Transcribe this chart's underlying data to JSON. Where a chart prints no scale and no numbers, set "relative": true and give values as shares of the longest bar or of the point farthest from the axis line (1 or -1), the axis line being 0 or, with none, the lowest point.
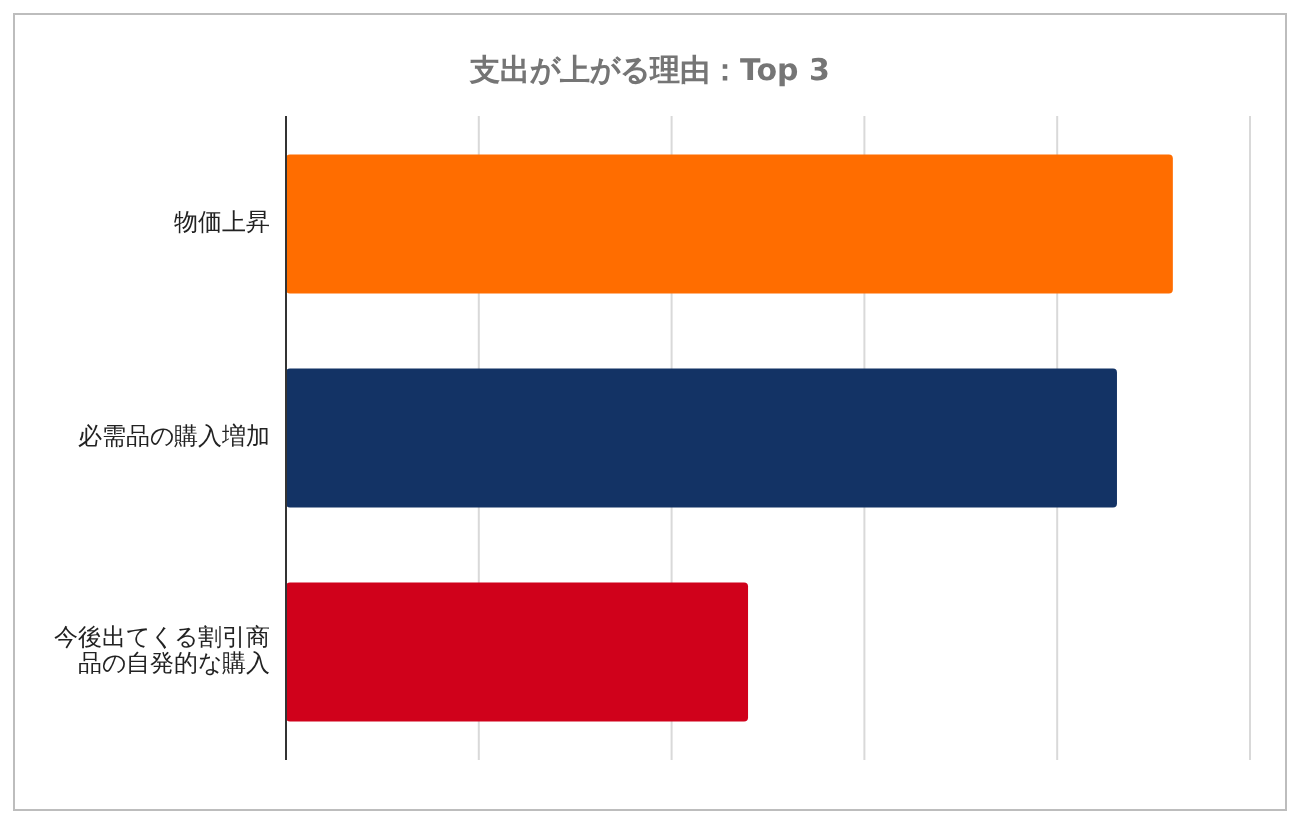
{
  "chart_data": {
    "type": "bar",
    "orientation": "horizontal",
    "relative": true,
    "title": "支出が上がる理由：Top 3",
    "categories": [
      "物価上昇",
      "必需品の購入増加",
      "今後出てくる割引商品の自発的な購入"
    ],
    "values": [
      1,
      0.937,
      0.521
    ],
    "colors": [
      "#ff6d00",
      "#133365",
      "#d0011b"
    ],
    "grid": "x"
  }
}
